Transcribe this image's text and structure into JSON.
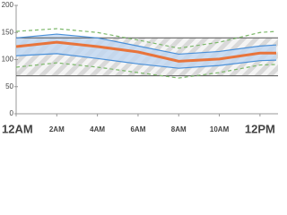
{
  "chart_data": {
    "type": "line",
    "x": [
      0,
      2,
      4,
      6,
      8,
      10,
      12,
      12.8
    ],
    "xlim": [
      0,
      12.8
    ],
    "xticks": [
      {
        "value": 0,
        "label": "12AM"
      },
      {
        "value": 2,
        "label": "2AM"
      },
      {
        "value": 4,
        "label": "4AM"
      },
      {
        "value": 6,
        "label": "6AM"
      },
      {
        "value": 8,
        "label": "8AM"
      },
      {
        "value": 10,
        "label": "10AM"
      },
      {
        "value": 12,
        "label": "12PM"
      }
    ],
    "major_xticks": [
      0,
      12
    ],
    "ylim": [
      0,
      200
    ],
    "yticks": [
      0,
      50,
      100,
      150,
      200
    ],
    "target_range": {
      "values": [
        70,
        140
      ],
      "color": "#555555",
      "hatch": "#d9d9d9"
    },
    "series": [
      {
        "color": "#7cb86a",
        "dashed": true,
        "values": [
          152,
          157,
          150,
          136,
          121,
          132,
          150,
          152
        ]
      },
      {
        "color": "#4a90d9",
        "fill": "#bdd6f1",
        "values": [
          140,
          147,
          140,
          125,
          110,
          115,
          125,
          127
        ]
      },
      {
        "color": "#4a90d9",
        "values": [
          107,
          111,
          102,
          92,
          84,
          89,
          98,
          99
        ]
      },
      {
        "color": "#7cb86a",
        "dashed": true,
        "values": [
          86,
          94,
          86,
          76,
          66,
          76,
          90,
          91
        ]
      },
      {
        "color": "#e8743b",
        "width": 3,
        "values": [
          124,
          132,
          124,
          114,
          97,
          101,
          112,
          112
        ]
      }
    ]
  }
}
